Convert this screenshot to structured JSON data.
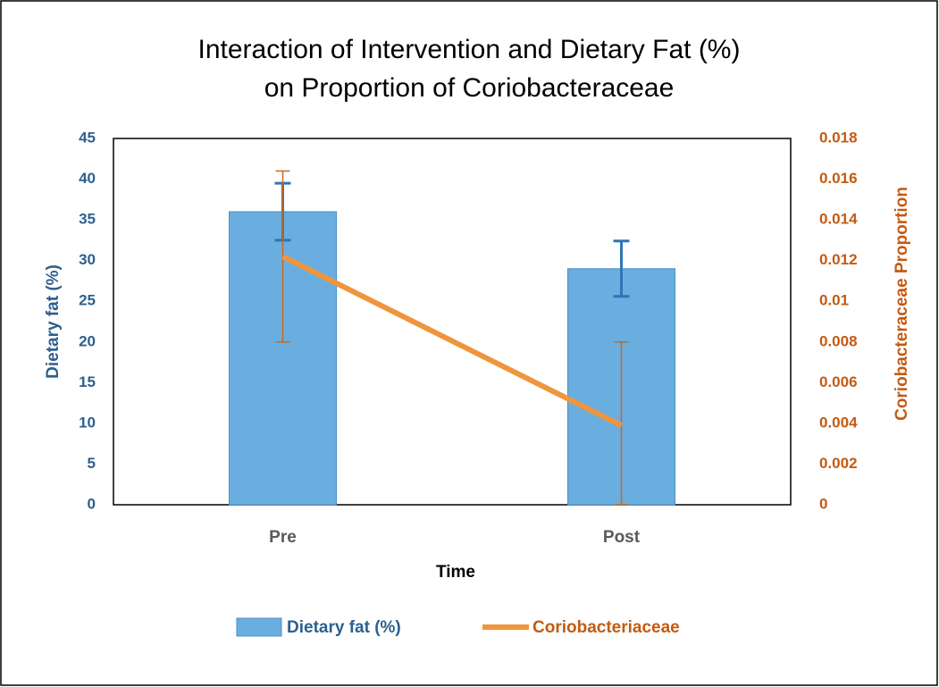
{
  "chart_data": {
    "type": "bar",
    "title": [
      "Interaction of Intervention and Dietary Fat (%)",
      "on Proportion of Coriobacteraceae"
    ],
    "x_label": "Time",
    "y_label": "Dietary fat (%)",
    "y2_label": "Coriobacteraceae Proportion",
    "categories": [
      "Pre",
      "Post"
    ],
    "series": [
      {
        "name": "Dietary fat (%)",
        "type": "bar",
        "color": "#6aaee0",
        "values": [
          36,
          29
        ],
        "errors": [
          3.5,
          3.4
        ]
      },
      {
        "name": "Coriobacteriaceae",
        "type": "line",
        "color": "#f0953f",
        "axis": "y2",
        "values": [
          0.0122,
          0.0039
        ],
        "errors": [
          0.0042,
          0.0041
        ]
      }
    ],
    "ylim": [
      0,
      45
    ],
    "yticks": [
      0,
      5,
      10,
      15,
      20,
      25,
      30,
      35,
      40,
      45
    ],
    "y2lim": [
      0,
      0.018
    ],
    "y2ticks": [
      0,
      0.002,
      0.004,
      0.006,
      0.008,
      0.01,
      0.012,
      0.014,
      0.016,
      0.018
    ],
    "legend": "bottom"
  }
}
